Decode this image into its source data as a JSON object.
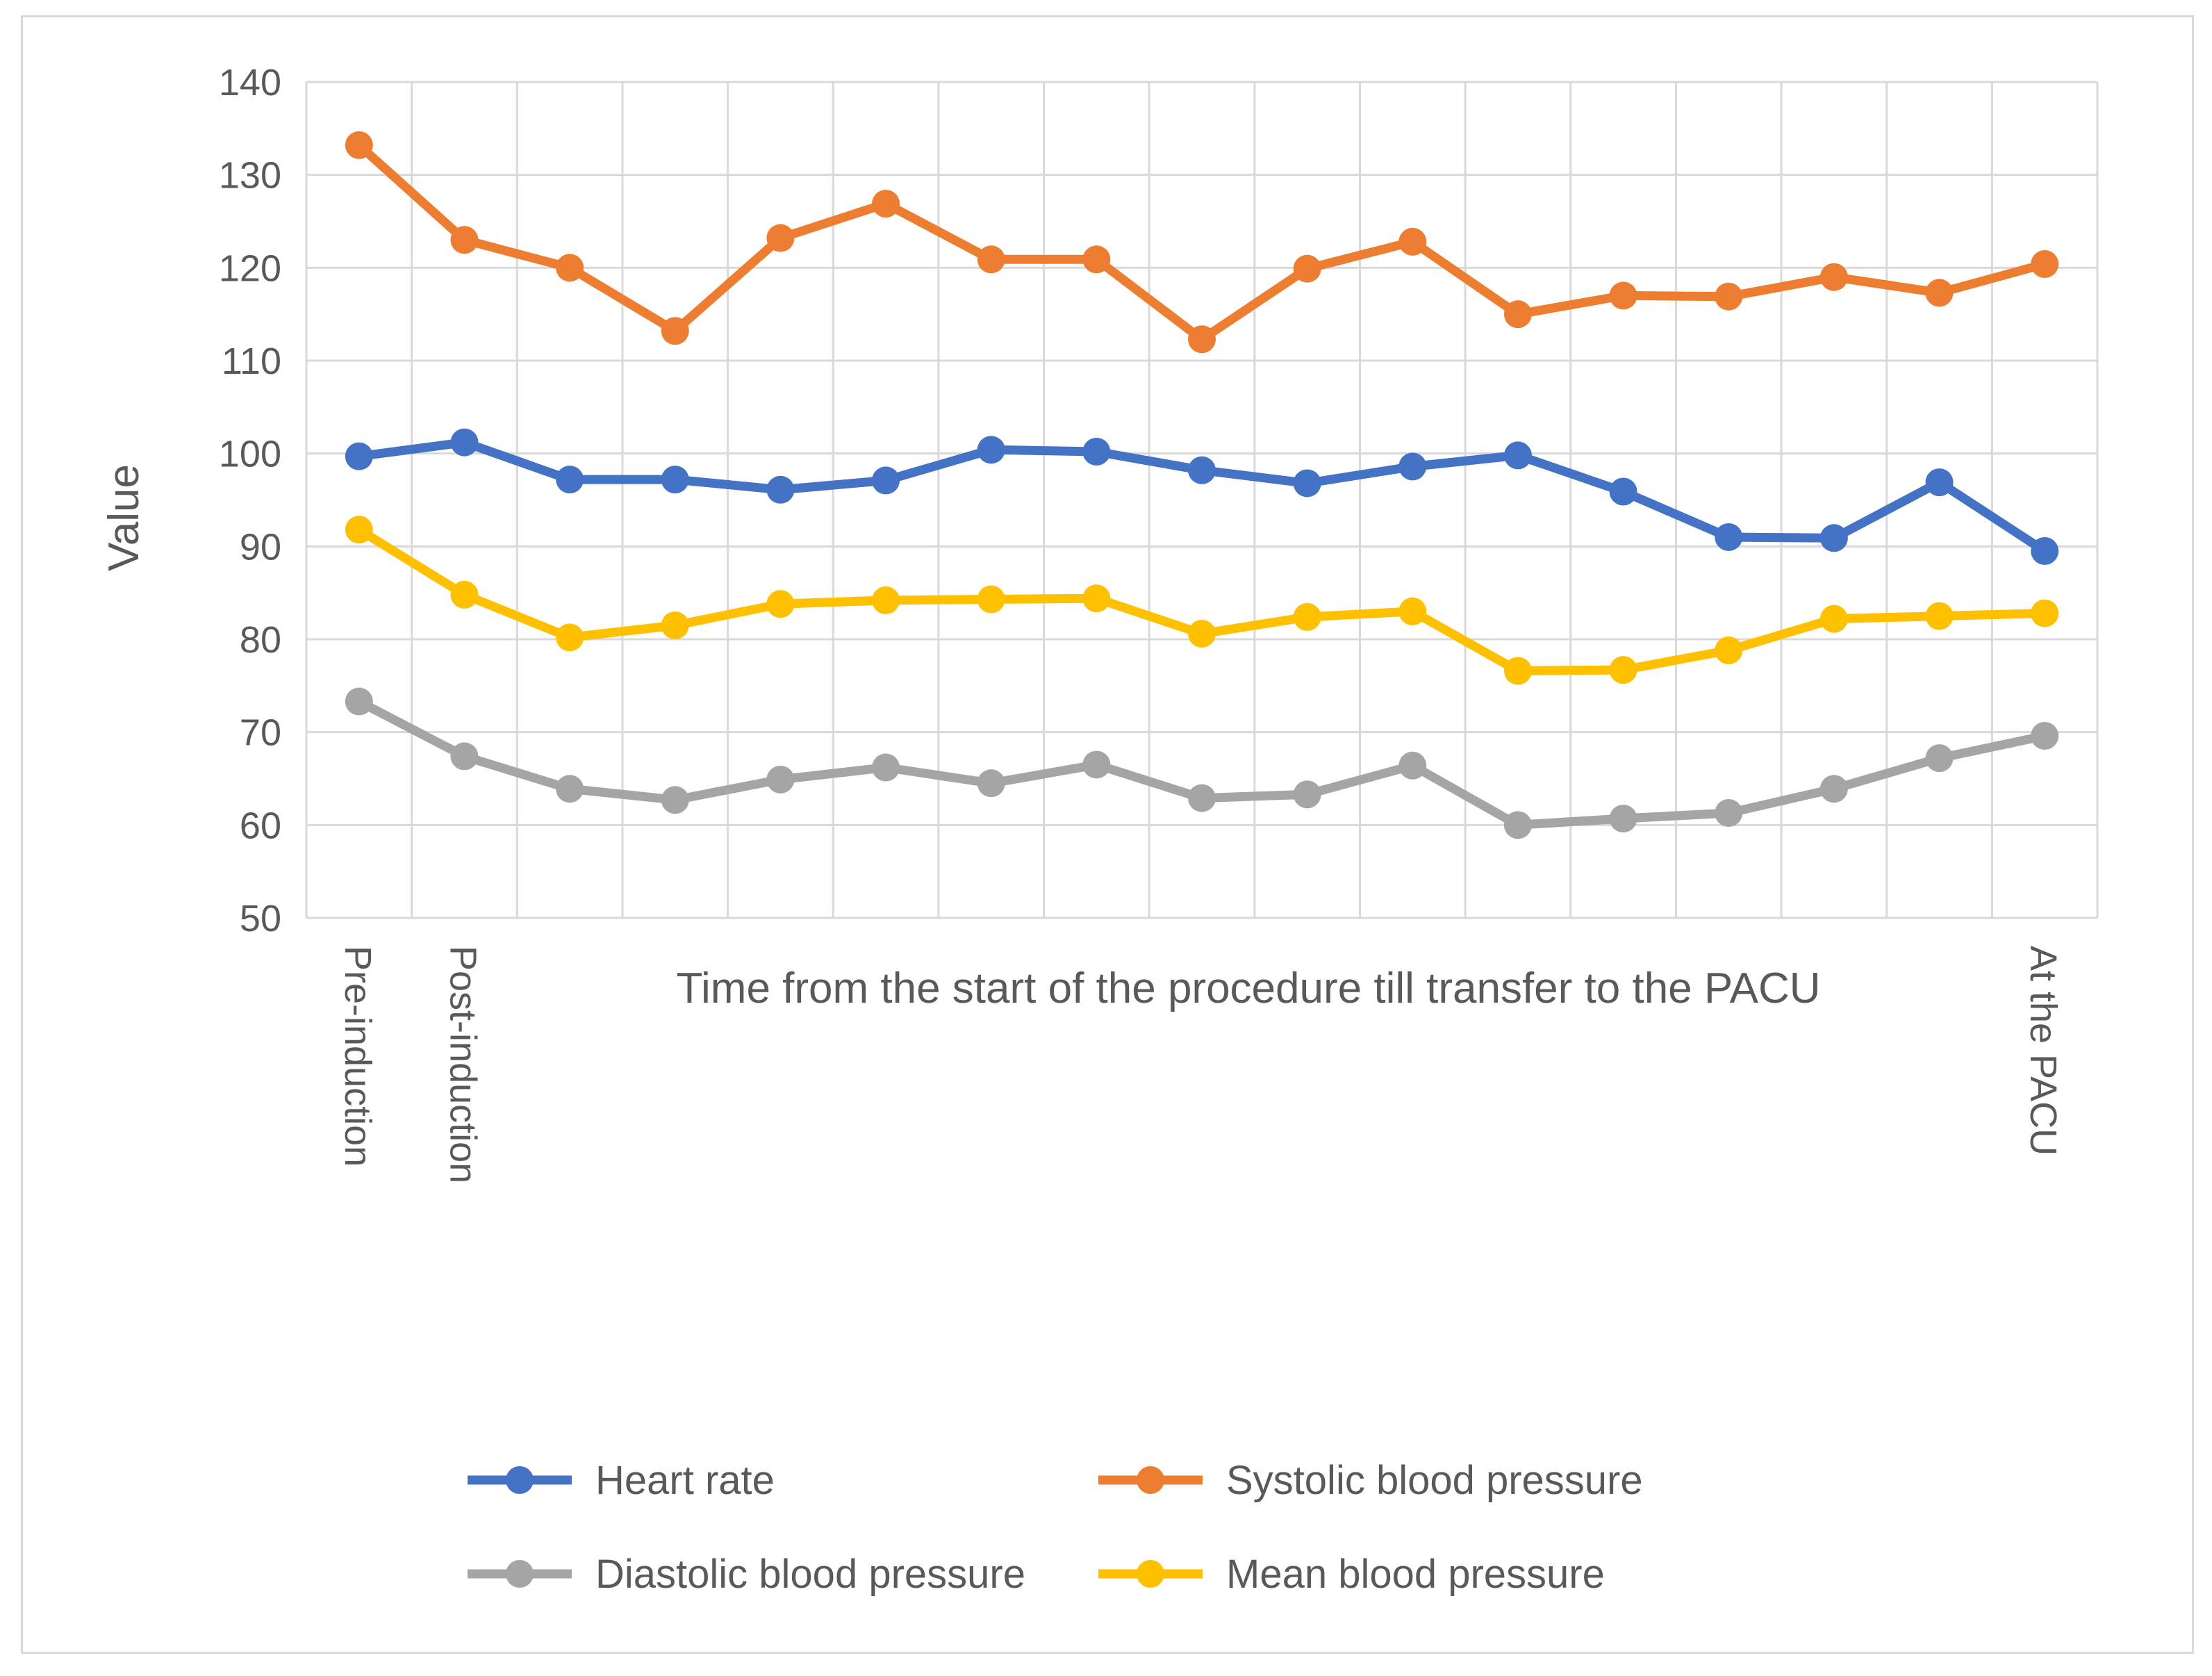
{
  "chart_data": {
    "type": "line",
    "ylabel": "Value",
    "xlabel": "Time from the start of the procedure till transfer to the PACU",
    "ylim": [
      50,
      140
    ],
    "y_ticks": [
      50,
      60,
      70,
      80,
      90,
      100,
      110,
      120,
      130,
      140
    ],
    "y_tick_labels": [
      "50",
      "60",
      "70",
      "80",
      "90",
      "100",
      "110",
      "120",
      "130",
      "140"
    ],
    "categories": [
      "Pre-induction",
      "Post-induction",
      "",
      "",
      "",
      "",
      "",
      "",
      "",
      "",
      "",
      "",
      "",
      "",
      "",
      "",
      "At the PACU"
    ],
    "grid": true,
    "legend_position": "bottom",
    "series": [
      {
        "name": "Heart rate",
        "color": "#4472C4",
        "values": [
          99.7,
          101.2,
          97.2,
          97.2,
          96.1,
          97.1,
          100.4,
          100.2,
          98.2,
          96.8,
          98.6,
          99.8,
          95.9,
          91.0,
          90.9,
          96.9,
          89.5
        ]
      },
      {
        "name": "Systolic blood pressure",
        "color": "#ED7D31",
        "values": [
          133.2,
          123.0,
          120.0,
          113.2,
          123.2,
          126.9,
          120.9,
          120.9,
          112.3,
          119.9,
          122.8,
          115.0,
          117.0,
          116.9,
          119.0,
          117.3,
          120.4
        ]
      },
      {
        "name": "Diastolic blood pressure",
        "color": "#A5A5A5",
        "values": [
          73.3,
          67.4,
          63.9,
          62.7,
          64.9,
          66.2,
          64.5,
          66.5,
          62.9,
          63.3,
          66.4,
          60.0,
          60.7,
          61.3,
          63.9,
          67.2,
          69.6
        ]
      },
      {
        "name": "Mean blood pressure",
        "color": "#FFC000",
        "values": [
          91.8,
          84.8,
          80.2,
          81.5,
          83.8,
          84.2,
          84.3,
          84.4,
          80.6,
          82.4,
          83.0,
          76.6,
          76.7,
          78.8,
          82.2,
          82.5,
          82.8
        ]
      }
    ]
  }
}
